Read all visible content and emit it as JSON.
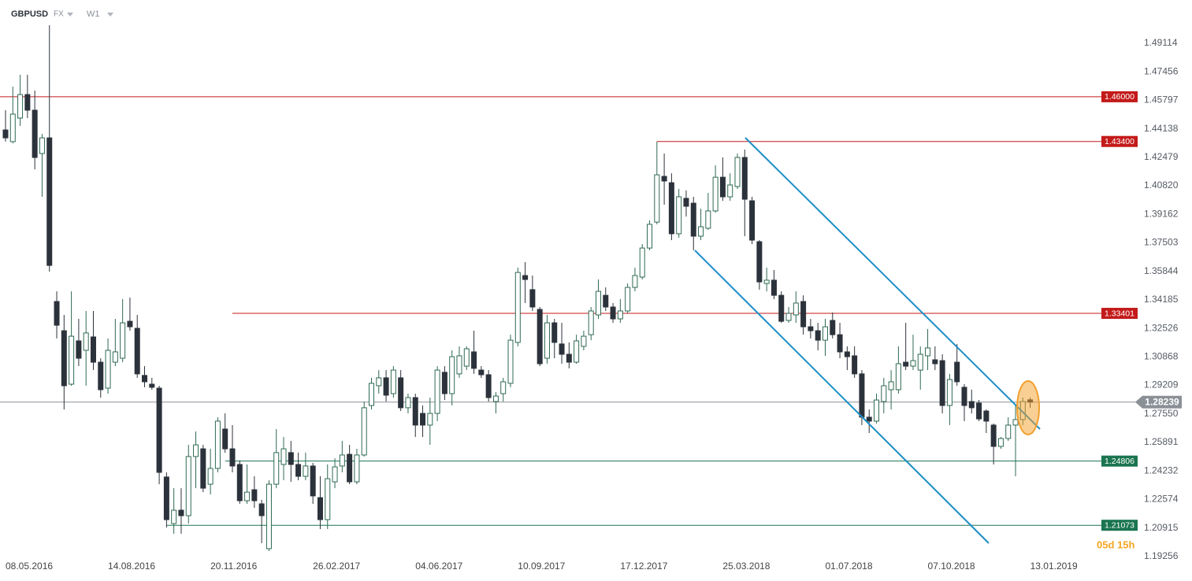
{
  "header": {
    "symbol": "GBPUSD",
    "market": "FX",
    "interval": "W1"
  },
  "countdown": "05d 15h",
  "chart_data": {
    "type": "candlestick",
    "x": [
      "08.05.2016",
      "15.05.2016",
      "22.05.2016",
      "29.05.2016",
      "05.06.2016",
      "12.06.2016",
      "19.06.2016",
      "26.06.2016",
      "03.07.2016",
      "10.07.2016",
      "17.07.2016",
      "24.07.2016",
      "31.07.2016",
      "07.08.2016",
      "14.08.2016",
      "21.08.2016",
      "28.08.2016",
      "04.09.2016",
      "11.09.2016",
      "18.09.2016",
      "25.09.2016",
      "02.10.2016",
      "09.10.2016",
      "16.10.2016",
      "23.10.2016",
      "30.10.2016",
      "06.11.2016",
      "13.11.2016",
      "20.11.2016",
      "27.11.2016",
      "04.12.2016",
      "11.12.2016",
      "18.12.2016",
      "25.12.2016",
      "01.01.2017",
      "08.01.2017",
      "15.01.2017",
      "22.01.2017",
      "29.01.2017",
      "05.02.2017",
      "12.02.2017",
      "19.02.2017",
      "26.02.2017",
      "05.03.2017",
      "12.03.2017",
      "19.03.2017",
      "26.03.2017",
      "02.04.2017",
      "09.04.2017",
      "16.04.2017",
      "23.04.2017",
      "30.04.2017",
      "07.05.2017",
      "14.05.2017",
      "21.05.2017",
      "28.05.2017",
      "04.06.2017",
      "11.06.2017",
      "18.06.2017",
      "25.06.2017",
      "02.07.2017",
      "09.07.2017",
      "16.07.2017",
      "23.07.2017",
      "30.07.2017",
      "06.08.2017",
      "13.08.2017",
      "20.08.2017",
      "27.08.2017",
      "03.09.2017",
      "10.09.2017",
      "17.09.2017",
      "24.09.2017",
      "01.10.2017",
      "08.10.2017",
      "15.10.2017",
      "22.10.2017",
      "29.10.2017",
      "05.11.2017",
      "12.11.2017",
      "19.11.2017",
      "26.11.2017",
      "03.12.2017",
      "10.12.2017",
      "17.12.2017",
      "24.12.2017",
      "31.12.2017",
      "07.01.2018",
      "14.01.2018",
      "21.01.2018",
      "28.01.2018",
      "04.02.2018",
      "11.02.2018",
      "18.02.2018",
      "25.02.2018",
      "04.03.2018",
      "11.03.2018",
      "18.03.2018",
      "25.03.2018",
      "01.04.2018",
      "08.04.2018",
      "15.04.2018",
      "22.04.2018",
      "29.04.2018",
      "06.05.2018",
      "13.05.2018",
      "20.05.2018",
      "27.05.2018",
      "03.06.2018",
      "10.06.2018",
      "17.06.2018",
      "24.06.2018",
      "01.07.2018",
      "08.07.2018",
      "15.07.2018",
      "22.07.2018",
      "29.07.2018",
      "05.08.2018",
      "12.08.2018",
      "19.08.2018",
      "26.08.2018",
      "02.09.2018",
      "09.09.2018",
      "16.09.2018",
      "23.09.2018",
      "30.09.2018",
      "07.10.2018",
      "14.10.2018",
      "21.10.2018",
      "28.10.2018",
      "04.11.2018",
      "11.11.2018",
      "18.11.2018",
      "25.11.2018",
      "02.12.2018",
      "09.12.2018",
      "16.12.2018",
      "23.12.2018",
      "30.12.2018",
      "06.01.2019",
      "13.01.2019"
    ],
    "open": [
      1.4407,
      1.4339,
      1.4476,
      1.4613,
      1.4522,
      1.427,
      1.4361,
      1.3409,
      1.3239,
      1.2928,
      1.318,
      1.3125,
      1.3203,
      1.3056,
      1.2905,
      1.3056,
      1.3079,
      1.3294,
      1.3253,
      1.2979,
      1.2928,
      1.2905,
      1.2388,
      1.2117,
      1.2195,
      1.2163,
      1.2507,
      1.2552,
      1.2346,
      1.2438,
      1.2667,
      1.2552,
      1.2461,
      1.225,
      1.2314,
      1.2232,
      1.1971,
      1.2346,
      1.2461,
      1.253,
      1.2461,
      1.2392,
      1.2452,
      1.2268,
      1.214,
      1.236,
      1.2452,
      1.252,
      1.236,
      1.2516,
      1.2804,
      1.2919,
      1.2965,
      1.2873,
      1.2965,
      1.2791,
      1.285,
      1.2758,
      1.269,
      1.2758,
      1.2997,
      1.2873,
      1.2988,
      1.3033,
      1.3116,
      1.301,
      1.2983,
      1.2827,
      1.2873,
      1.2933,
      1.3171,
      1.356,
      1.3478,
      1.3363,
      1.3079,
      1.3285,
      1.3162,
      1.3102,
      1.3056,
      1.3148,
      1.3216,
      1.3331,
      1.3445,
      1.3377,
      1.3308,
      1.3354,
      1.3491,
      1.3551,
      1.372,
      1.3871,
      1.4137,
      1.41,
      1.3803,
      1.4009,
      1.3981,
      1.3789,
      1.3835,
      1.3936,
      1.4132,
      1.4018,
      1.4078,
      1.4247,
      1.3995,
      1.3757,
      1.3514,
      1.3533,
      1.3445,
      1.3299,
      1.3331,
      1.3409,
      1.3262,
      1.3239,
      1.3184,
      1.3299,
      1.3216,
      1.3116,
      1.3093,
      1.2988,
      1.2736,
      1.2713,
      1.2827,
      1.2896,
      1.2896,
      1.3056,
      1.3033,
      1.301,
      1.3093,
      1.307,
      1.3065,
      1.2804,
      1.3056,
      1.291,
      1.2827,
      1.2818,
      1.2772,
      1.269,
      1.2566,
      1.2612,
      1.269,
      1.2722,
      1.2837
    ],
    "high": [
      1.4522,
      1.4659,
      1.4728,
      1.4728,
      1.4636,
      1.4384,
      1.5016,
      1.3468,
      1.3331,
      1.3468,
      1.3308,
      1.3354,
      1.3354,
      1.3079,
      1.3194,
      1.3308,
      1.3423,
      1.3432,
      1.3331,
      1.3033,
      1.2965,
      1.2919,
      1.2415,
      1.2323,
      1.2323,
      1.2575,
      1.2653,
      1.2575,
      1.2552,
      1.2736,
      1.2758,
      1.269,
      1.2484,
      1.2461,
      1.2392,
      1.2255,
      1.2369,
      1.2667,
      1.2621,
      1.2598,
      1.253,
      1.253,
      1.247,
      1.2392,
      1.2461,
      1.2497,
      1.2598,
      1.2575,
      1.2552,
      1.2827,
      1.2965,
      1.301,
      1.301,
      1.3033,
      1.301,
      1.2873,
      1.2873,
      1.2804,
      1.285,
      1.3033,
      1.3033,
      1.3125,
      1.3148,
      1.3148,
      1.3239,
      1.3033,
      1.301,
      1.2882,
      1.2965,
      1.3216,
      1.3606,
      1.3638,
      1.356,
      1.3377,
      1.3331,
      1.3308,
      1.3285,
      1.3171,
      1.3216,
      1.3239,
      1.3377,
      1.3537,
      1.3491,
      1.34,
      1.3423,
      1.3514,
      1.3606,
      1.3743,
      1.3881,
      1.4339,
      1.427,
      1.4155,
      1.4064,
      1.4055,
      1.4018,
      1.3949,
      1.4041,
      1.4201,
      1.4247,
      1.4155,
      1.427,
      1.4293,
      1.4018,
      1.3766,
      1.3606,
      1.3592,
      1.3468,
      1.3377,
      1.3468,
      1.3445,
      1.3308,
      1.3285,
      1.3308,
      1.3345,
      1.3285,
      1.3148,
      1.3148,
      1.301,
      1.2781,
      1.2873,
      1.2965,
      1.301,
      1.3148,
      1.3285,
      1.3216,
      1.3148,
      1.3249,
      1.3148,
      1.3102,
      1.2988,
      1.3162,
      1.2928,
      1.2896,
      1.2836,
      1.2781,
      1.2699,
      1.2621,
      1.2736,
      1.2804,
      1.285,
      1.285
    ],
    "low": [
      1.4339,
      1.4329,
      1.443,
      1.4476,
      1.4178,
      1.4018,
      1.3583,
      1.3194,
      1.2781,
      1.2919,
      1.3033,
      1.2919,
      1.301,
      1.285,
      1.2873,
      1.3033,
      1.3056,
      1.3239,
      1.2965,
      1.291,
      1.2896,
      1.2346,
      1.2094,
      1.2058,
      1.2058,
      1.2117,
      1.2323,
      1.23,
      1.2287,
      1.2415,
      1.2529,
      1.2415,
      1.2232,
      1.2232,
      1.2209,
      1.2003,
      1.1957,
      1.2323,
      1.2369,
      1.236,
      1.2369,
      1.2369,
      1.2232,
      1.2085,
      1.2085,
      1.2323,
      1.2415,
      1.2346,
      1.2346,
      1.2507,
      1.2781,
      1.2873,
      1.2827,
      1.285,
      1.2772,
      1.2758,
      1.2621,
      1.2621,
      1.2575,
      1.2713,
      1.2836,
      1.2804,
      1.2965,
      1.301,
      1.2988,
      1.2965,
      1.2827,
      1.2758,
      1.2827,
      1.291,
      1.3148,
      1.34,
      1.3354,
      1.3033,
      1.3047,
      1.3079,
      1.3047,
      1.302,
      1.3047,
      1.3125,
      1.3184,
      1.3308,
      1.3354,
      1.3285,
      1.3285,
      1.334,
      1.3468,
      1.3537,
      1.3707,
      1.3858,
      1.3972,
      1.3766,
      1.378,
      1.3903,
      1.3707,
      1.3766,
      1.3826,
      1.3926,
      1.3995,
      1.3995,
      1.4064,
      1.3789,
      1.3743,
      1.3478,
      1.3468,
      1.3423,
      1.3285,
      1.3285,
      1.3285,
      1.3216,
      1.3194,
      1.3125,
      1.3093,
      1.3194,
      1.3079,
      1.301,
      1.2965,
      1.269,
      1.2644,
      1.2699,
      1.2758,
      1.2781,
      1.2873,
      1.301,
      1.301,
      1.2896,
      1.301,
      1.301,
      1.2758,
      1.269,
      1.2919,
      1.2713,
      1.2758,
      1.2713,
      1.2644,
      1.2461,
      1.2552,
      1.2598,
      1.2392,
      1.269,
      1.2791
    ],
    "close": [
      1.4361,
      1.4499,
      1.4613,
      1.4522,
      1.4247,
      1.4361,
      1.3619,
      1.3271,
      1.2919,
      1.3207,
      1.3079,
      1.3226,
      1.3056,
      1.2896,
      1.3125,
      1.3116,
      1.3285,
      1.3262,
      1.2988,
      1.2942,
      1.291,
      1.2415,
      1.214,
      1.2195,
      1.2163,
      1.2507,
      1.2575,
      1.2323,
      1.2438,
      1.2713,
      1.2552,
      1.2452,
      1.225,
      1.23,
      1.225,
      1.2163,
      1.2346,
      1.253,
      1.2552,
      1.2461,
      1.2392,
      1.2452,
      1.2278,
      1.214,
      1.2378,
      1.2447,
      1.2516,
      1.236,
      1.2516,
      1.2791,
      1.2933,
      1.2965,
      1.2864,
      1.301,
      1.2791,
      1.285,
      1.269,
      1.269,
      1.2758,
      1.301,
      1.2873,
      1.3088,
      1.3093,
      1.3134,
      1.302,
      1.2983,
      1.285,
      1.2859,
      1.2942,
      1.3184,
      1.3578,
      1.3537,
      1.3377,
      1.3047,
      1.3285,
      1.3171,
      1.3102,
      1.3056,
      1.318,
      1.3207,
      1.3354,
      1.3468,
      1.3377,
      1.3308,
      1.3354,
      1.3491,
      1.356,
      1.372,
      1.3858,
      1.4146,
      1.411,
      1.3803,
      1.4018,
      1.3963,
      1.3789,
      1.3844,
      1.3936,
      1.4132,
      1.4018,
      1.4087,
      1.4247,
      1.4004,
      1.3766,
      1.3523,
      1.3533,
      1.3445,
      1.3294,
      1.334,
      1.34,
      1.3262,
      1.3239,
      1.3184,
      1.3262,
      1.3216,
      1.3116,
      1.3088,
      1.2988,
      1.2736,
      1.2713,
      1.2836,
      1.2919,
      1.2942,
      1.3047,
      1.3033,
      1.3065,
      1.3102,
      1.3139,
      1.3047,
      1.2804,
      1.2955,
      1.2942,
      1.2804,
      1.2791,
      1.2726,
      1.2713,
      1.2566,
      1.2612,
      1.269,
      1.2722,
      1.2827,
      1.28239
    ],
    "up_color": "#2f6a52",
    "down_color": "#2c323b",
    "ylim": [
      1.1783,
      1.5163
    ],
    "yticks": [
      1.49114,
      1.47456,
      1.45797,
      1.44138,
      1.42479,
      {
        "value": 1.4082,
        "label": "1.40820"
      },
      1.39162,
      1.37503,
      1.35844,
      1.34185,
      1.32526,
      1.30868,
      1.29209,
      {
        "value": 1.2755,
        "label": "1.27550"
      },
      1.25891,
      1.24232,
      1.22574,
      1.20915,
      1.19256
    ],
    "xticks": [
      "08.05.2016",
      "14.08.2016",
      "20.11.2016",
      "26.02.2017",
      "04.06.2017",
      "10.09.2017",
      "17.12.2017",
      "25.03.2018",
      "01.07.2018",
      "07.10.2018",
      "13.01.2019"
    ],
    "grid": false,
    "levels": [
      {
        "value": 1.46,
        "label": "1.46000",
        "color": "#c41a1a"
      },
      {
        "value": 1.434,
        "label": "1.43400",
        "color": "#c41a1a",
        "from": "21.01.2018"
      },
      {
        "value": 1.33401,
        "color": "#c41a1a",
        "from": "11.12.2016"
      },
      {
        "value": 1.24806,
        "color": "#1a7550",
        "from": "04.12.2016"
      },
      {
        "value": 1.21073,
        "color": "#1a7550",
        "from": "09.10.2016"
      }
    ],
    "last_price": 1.28239,
    "last_price_color": "#8b9097"
  }
}
